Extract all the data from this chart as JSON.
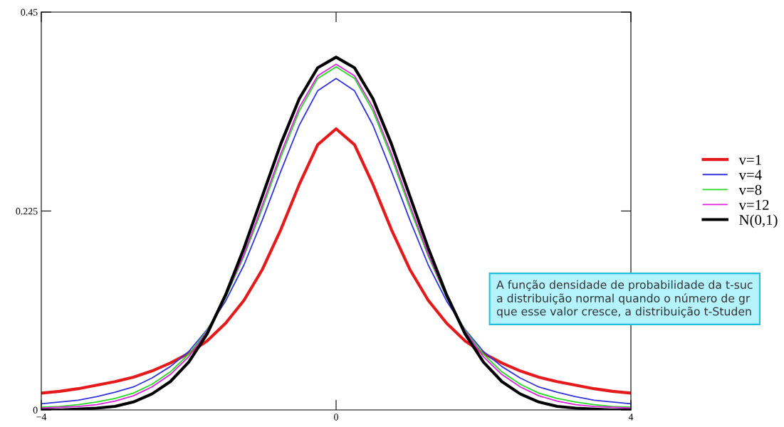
{
  "chart_data": {
    "type": "line",
    "x": [
      -4,
      -3.75,
      -3.5,
      -3.25,
      -3,
      -2.75,
      -2.5,
      -2.25,
      -2,
      -1.75,
      -1.5,
      -1.25,
      -1,
      -0.75,
      -0.5,
      -0.25,
      0,
      0.25,
      0.5,
      0.75,
      1,
      1.25,
      1.5,
      1.75,
      2,
      2.25,
      2.5,
      2.75,
      3,
      3.25,
      3.5,
      3.75,
      4
    ],
    "series": [
      {
        "name": "v=1",
        "color": "#e41a1c",
        "values": [
          0.019,
          0.021,
          0.024,
          0.028,
          0.032,
          0.037,
          0.044,
          0.053,
          0.064,
          0.078,
          0.098,
          0.124,
          0.159,
          0.204,
          0.255,
          0.3,
          0.318,
          0.3,
          0.255,
          0.204,
          0.159,
          0.124,
          0.098,
          0.078,
          0.064,
          0.053,
          0.044,
          0.037,
          0.032,
          0.028,
          0.024,
          0.021,
          0.019
        ]
      },
      {
        "name": "v=4",
        "color": "#3333dd",
        "values": [
          0.007,
          0.009,
          0.011,
          0.015,
          0.02,
          0.026,
          0.036,
          0.049,
          0.066,
          0.091,
          0.123,
          0.164,
          0.215,
          0.27,
          0.322,
          0.361,
          0.375,
          0.361,
          0.322,
          0.27,
          0.215,
          0.164,
          0.123,
          0.091,
          0.066,
          0.049,
          0.036,
          0.026,
          0.02,
          0.015,
          0.011,
          0.009,
          0.007
        ]
      },
      {
        "name": "v=8",
        "color": "#22dd22",
        "values": [
          0.003,
          0.004,
          0.006,
          0.009,
          0.013,
          0.019,
          0.029,
          0.043,
          0.063,
          0.09,
          0.127,
          0.174,
          0.228,
          0.286,
          0.338,
          0.375,
          0.388,
          0.375,
          0.338,
          0.286,
          0.228,
          0.174,
          0.127,
          0.09,
          0.063,
          0.043,
          0.029,
          0.019,
          0.013,
          0.009,
          0.006,
          0.004,
          0.003
        ]
      },
      {
        "name": "v=12",
        "color": "#dd22dd",
        "values": [
          0.002,
          0.003,
          0.004,
          0.006,
          0.01,
          0.016,
          0.026,
          0.04,
          0.06,
          0.089,
          0.128,
          0.176,
          0.232,
          0.29,
          0.342,
          0.378,
          0.391,
          0.378,
          0.342,
          0.29,
          0.232,
          0.176,
          0.128,
          0.089,
          0.06,
          0.04,
          0.026,
          0.016,
          0.01,
          0.006,
          0.004,
          0.003,
          0.002
        ]
      },
      {
        "name": "N(0,1)",
        "color": "#000000",
        "values": [
          0.0,
          0.0,
          0.001,
          0.002,
          0.004,
          0.009,
          0.018,
          0.032,
          0.054,
          0.086,
          0.13,
          0.183,
          0.242,
          0.301,
          0.352,
          0.387,
          0.399,
          0.387,
          0.352,
          0.301,
          0.242,
          0.183,
          0.13,
          0.086,
          0.054,
          0.032,
          0.018,
          0.009,
          0.004,
          0.002,
          0.001,
          0.0,
          0.0
        ]
      }
    ],
    "xlim": [
      -4,
      4
    ],
    "xticks": [
      {
        "value": -4,
        "label": "−4"
      },
      0,
      4
    ],
    "ylim": [
      0,
      0.45
    ],
    "yticks": [
      0,
      0.225,
      0.45
    ],
    "grid": false,
    "legend": "right",
    "marker": "none",
    "line_style": "solid",
    "annotations": [
      "A função densidade de probabilidade da t-suc\na distribuição normal quando o número de gr\nque esse valor cresce, a distribuição t-Studen"
    ]
  }
}
